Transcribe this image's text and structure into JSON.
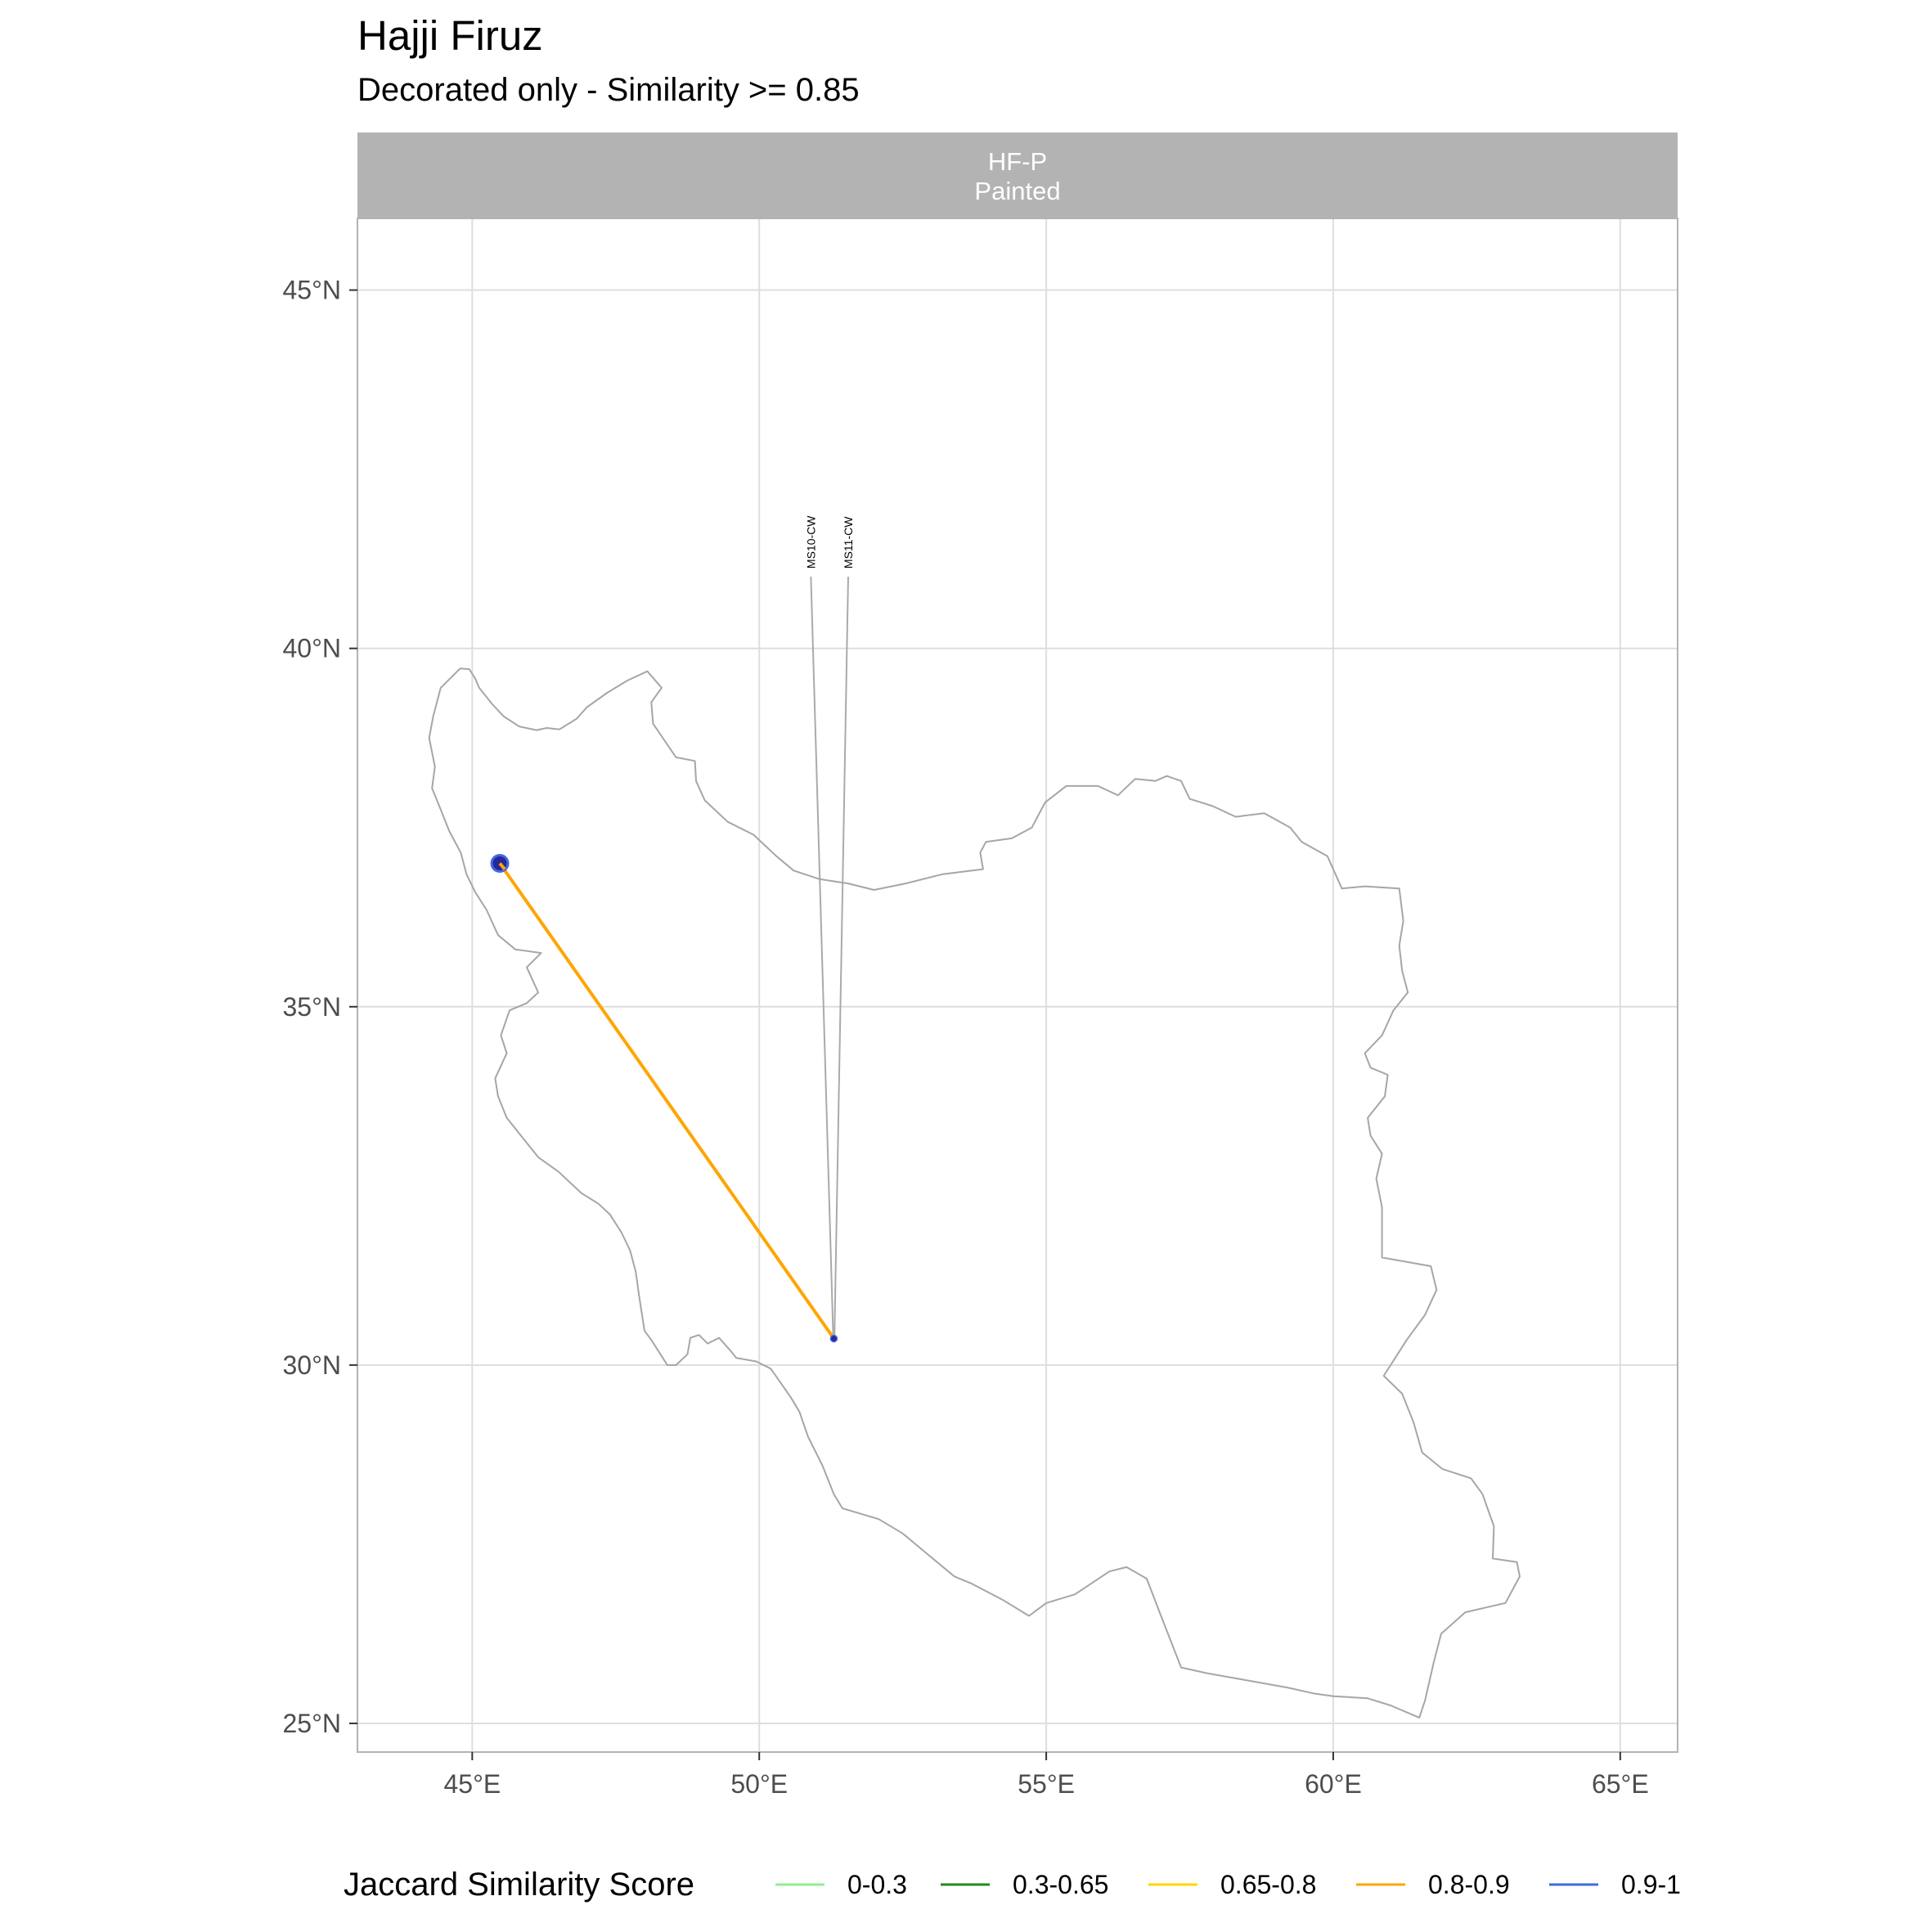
{
  "title": "Hajji Firuz",
  "subtitle": "Decorated only - Similarity >= 0.85",
  "facet": {
    "line1": "HF-P",
    "line2": "Painted"
  },
  "axes": {
    "x": {
      "ticks": [
        45,
        50,
        55,
        60,
        65
      ],
      "labels": [
        "45°E",
        "50°E",
        "55°E",
        "60°E",
        "65°E"
      ],
      "range": [
        43.0,
        66.0
      ]
    },
    "y": {
      "ticks": [
        25,
        30,
        35,
        40,
        45
      ],
      "labels": [
        "25°N",
        "30°N",
        "35°N",
        "40°N",
        "45°N"
      ],
      "range": [
        24.6,
        46.0
      ]
    }
  },
  "legend": {
    "title": "Jaccard Similarity Score",
    "items": [
      {
        "label": "0-0.3",
        "color": "#90EE90"
      },
      {
        "label": "0.3-0.65",
        "color": "#228B22"
      },
      {
        "label": "0.65-0.8",
        "color": "#FFD700"
      },
      {
        "label": "0.8-0.9",
        "color": "#FFA500"
      },
      {
        "label": "0.9-1",
        "color": "#4169E1"
      }
    ]
  },
  "colors": {
    "outline": "#a6a6a6",
    "grid": "#dedede",
    "strip": "#b3b3b3",
    "site_fill": "#27279b",
    "site_edge": "#4169E1",
    "connection": "#FFA500"
  },
  "sites": [
    {
      "name": "Hajji Firuz",
      "lon": 45.48,
      "lat": 37.0,
      "size": "large"
    },
    {
      "name": "MS10-CW / MS11-CW",
      "lon": 51.3,
      "lat": 30.37,
      "size": "small"
    }
  ],
  "connections": [
    {
      "from": [
        45.48,
        37.0
      ],
      "to": [
        51.3,
        30.37
      ],
      "color": "#FFA500",
      "class": "0.8-0.9"
    }
  ],
  "site_labels": [
    {
      "text": "MS10-CW",
      "label_lon": 50.9,
      "label_lat": 41.0,
      "point_lon": 51.29,
      "point_lat": 30.37
    },
    {
      "text": "MS11-CW",
      "label_lon": 51.55,
      "label_lat": 41.0,
      "point_lon": 51.31,
      "point_lat": 30.37
    }
  ],
  "outline": [
    [
      44.79,
      39.72
    ],
    [
      44.95,
      39.71
    ],
    [
      45.05,
      39.58
    ],
    [
      45.12,
      39.45
    ],
    [
      45.35,
      39.22
    ],
    [
      45.55,
      39.05
    ],
    [
      45.82,
      38.91
    ],
    [
      46.12,
      38.86
    ],
    [
      46.3,
      38.89
    ],
    [
      46.52,
      38.87
    ],
    [
      46.82,
      39.02
    ],
    [
      47.0,
      39.18
    ],
    [
      47.35,
      39.38
    ],
    [
      47.7,
      39.55
    ],
    [
      48.05,
      39.68
    ],
    [
      48.3,
      39.45
    ],
    [
      48.12,
      39.25
    ],
    [
      48.15,
      38.95
    ],
    [
      48.32,
      38.75
    ],
    [
      48.55,
      38.48
    ],
    [
      48.88,
      38.43
    ],
    [
      48.9,
      38.15
    ],
    [
      49.05,
      37.88
    ],
    [
      49.45,
      37.58
    ],
    [
      49.9,
      37.4
    ],
    [
      50.3,
      37.1
    ],
    [
      50.6,
      36.9
    ],
    [
      51.05,
      36.78
    ],
    [
      51.55,
      36.72
    ],
    [
      52.0,
      36.63
    ],
    [
      52.55,
      36.72
    ],
    [
      53.2,
      36.85
    ],
    [
      53.9,
      36.92
    ],
    [
      53.85,
      37.15
    ],
    [
      53.95,
      37.3
    ],
    [
      54.4,
      37.35
    ],
    [
      54.75,
      37.5
    ],
    [
      54.98,
      37.85
    ],
    [
      55.35,
      38.08
    ],
    [
      55.9,
      38.08
    ],
    [
      56.25,
      37.95
    ],
    [
      56.55,
      38.18
    ],
    [
      56.9,
      38.15
    ],
    [
      57.1,
      38.22
    ],
    [
      57.35,
      38.15
    ],
    [
      57.5,
      37.9
    ],
    [
      57.9,
      37.8
    ],
    [
      58.3,
      37.65
    ],
    [
      58.8,
      37.7
    ],
    [
      59.25,
      37.5
    ],
    [
      59.45,
      37.3
    ],
    [
      59.9,
      37.1
    ],
    [
      60.15,
      36.65
    ],
    [
      60.55,
      36.68
    ],
    [
      61.15,
      36.65
    ],
    [
      61.22,
      36.2
    ],
    [
      61.15,
      35.85
    ],
    [
      61.2,
      35.5
    ],
    [
      61.3,
      35.2
    ],
    [
      61.05,
      34.95
    ],
    [
      60.85,
      34.6
    ],
    [
      60.55,
      34.35
    ],
    [
      60.65,
      34.15
    ],
    [
      60.95,
      34.05
    ],
    [
      60.9,
      33.75
    ],
    [
      60.6,
      33.45
    ],
    [
      60.65,
      33.2
    ],
    [
      60.85,
      32.95
    ],
    [
      60.75,
      32.6
    ],
    [
      60.85,
      32.2
    ],
    [
      60.85,
      31.5
    ],
    [
      61.7,
      31.38
    ],
    [
      61.8,
      31.05
    ],
    [
      61.6,
      30.7
    ],
    [
      61.28,
      30.35
    ],
    [
      60.88,
      29.85
    ],
    [
      61.2,
      29.6
    ],
    [
      61.4,
      29.2
    ],
    [
      61.55,
      28.78
    ],
    [
      61.9,
      28.55
    ],
    [
      62.4,
      28.42
    ],
    [
      62.6,
      28.2
    ],
    [
      62.8,
      27.75
    ],
    [
      62.78,
      27.3
    ],
    [
      63.2,
      27.25
    ],
    [
      63.25,
      27.05
    ],
    [
      63.0,
      26.68
    ],
    [
      62.3,
      26.55
    ],
    [
      61.88,
      26.25
    ],
    [
      61.75,
      25.85
    ],
    [
      61.6,
      25.32
    ],
    [
      61.5,
      25.08
    ],
    [
      61.0,
      25.25
    ],
    [
      60.6,
      25.35
    ],
    [
      60.0,
      25.38
    ],
    [
      59.65,
      25.42
    ],
    [
      59.2,
      25.5
    ],
    [
      58.5,
      25.6
    ],
    [
      57.8,
      25.7
    ],
    [
      57.35,
      25.78
    ],
    [
      57.0,
      26.5
    ],
    [
      56.75,
      27.02
    ],
    [
      56.4,
      27.18
    ],
    [
      56.1,
      27.12
    ],
    [
      55.5,
      26.8
    ],
    [
      55.0,
      26.68
    ],
    [
      54.7,
      26.5
    ],
    [
      54.25,
      26.72
    ],
    [
      53.7,
      26.95
    ],
    [
      53.4,
      27.05
    ],
    [
      52.95,
      27.35
    ],
    [
      52.5,
      27.65
    ],
    [
      52.08,
      27.85
    ],
    [
      51.45,
      28.0
    ],
    [
      51.3,
      28.2
    ],
    [
      51.1,
      28.6
    ],
    [
      50.85,
      29.0
    ],
    [
      50.7,
      29.35
    ],
    [
      50.55,
      29.55
    ],
    [
      50.2,
      29.95
    ],
    [
      49.95,
      30.05
    ],
    [
      49.6,
      30.1
    ],
    [
      49.5,
      30.2
    ],
    [
      49.3,
      30.38
    ],
    [
      49.1,
      30.3
    ],
    [
      48.95,
      30.42
    ],
    [
      48.8,
      30.38
    ],
    [
      48.75,
      30.15
    ],
    [
      48.55,
      30.0
    ],
    [
      48.4,
      30.0
    ],
    [
      48.12,
      30.35
    ],
    [
      48.0,
      30.48
    ],
    [
      47.9,
      31.0
    ],
    [
      47.85,
      31.3
    ],
    [
      47.75,
      31.6
    ],
    [
      47.6,
      31.85
    ],
    [
      47.4,
      32.1
    ],
    [
      47.2,
      32.25
    ],
    [
      46.9,
      32.4
    ],
    [
      46.5,
      32.7
    ],
    [
      46.15,
      32.9
    ],
    [
      45.85,
      33.2
    ],
    [
      45.6,
      33.45
    ],
    [
      45.45,
      33.75
    ],
    [
      45.4,
      34.0
    ],
    [
      45.6,
      34.35
    ],
    [
      45.5,
      34.6
    ],
    [
      45.65,
      34.95
    ],
    [
      45.95,
      35.05
    ],
    [
      46.15,
      35.2
    ],
    [
      45.95,
      35.55
    ],
    [
      46.2,
      35.75
    ],
    [
      45.75,
      35.8
    ],
    [
      45.45,
      36.0
    ],
    [
      45.25,
      36.35
    ],
    [
      45.05,
      36.6
    ],
    [
      44.9,
      36.85
    ],
    [
      44.8,
      37.15
    ],
    [
      44.6,
      37.45
    ],
    [
      44.45,
      37.75
    ],
    [
      44.3,
      38.05
    ],
    [
      44.35,
      38.35
    ],
    [
      44.25,
      38.75
    ],
    [
      44.32,
      39.05
    ],
    [
      44.45,
      39.45
    ],
    [
      44.79,
      39.72
    ]
  ]
}
